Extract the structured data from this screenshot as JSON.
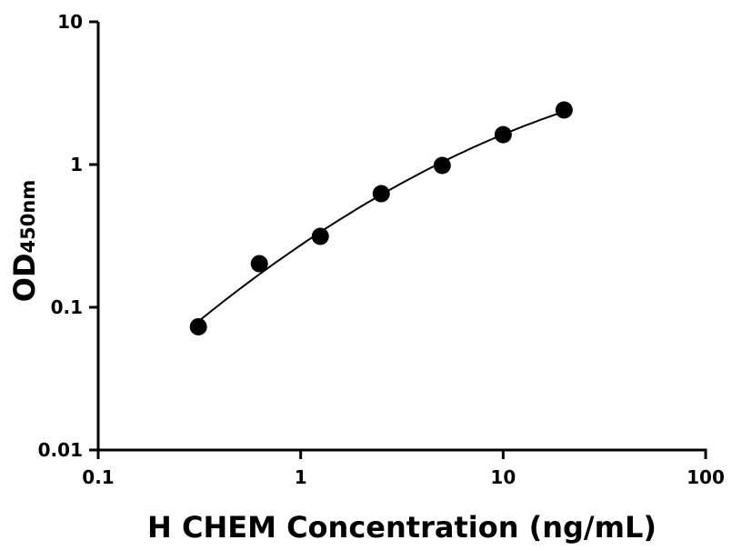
{
  "chart_data": {
    "type": "scatter",
    "title": "",
    "xlabel": "H CHEM Concentration (ng/mL)",
    "ylabel": "OD",
    "ylabel_subscript": "450nm",
    "x_scale": "log",
    "y_scale": "log",
    "xlim": [
      0.1,
      100
    ],
    "ylim": [
      0.01,
      10
    ],
    "x_ticks": [
      "0.1",
      "1",
      "10",
      "100"
    ],
    "y_ticks": [
      "0.01",
      "0.1",
      "1",
      "10"
    ],
    "grid": false,
    "fit_curve": true,
    "series": [
      {
        "x": [
          0.3125,
          0.625,
          1.25,
          2.5,
          5,
          10,
          20
        ],
        "y": [
          0.073,
          0.202,
          0.314,
          0.625,
          0.985,
          1.62,
          2.41
        ]
      }
    ],
    "colors": {
      "marker": "#000000",
      "line": "#000000"
    }
  }
}
